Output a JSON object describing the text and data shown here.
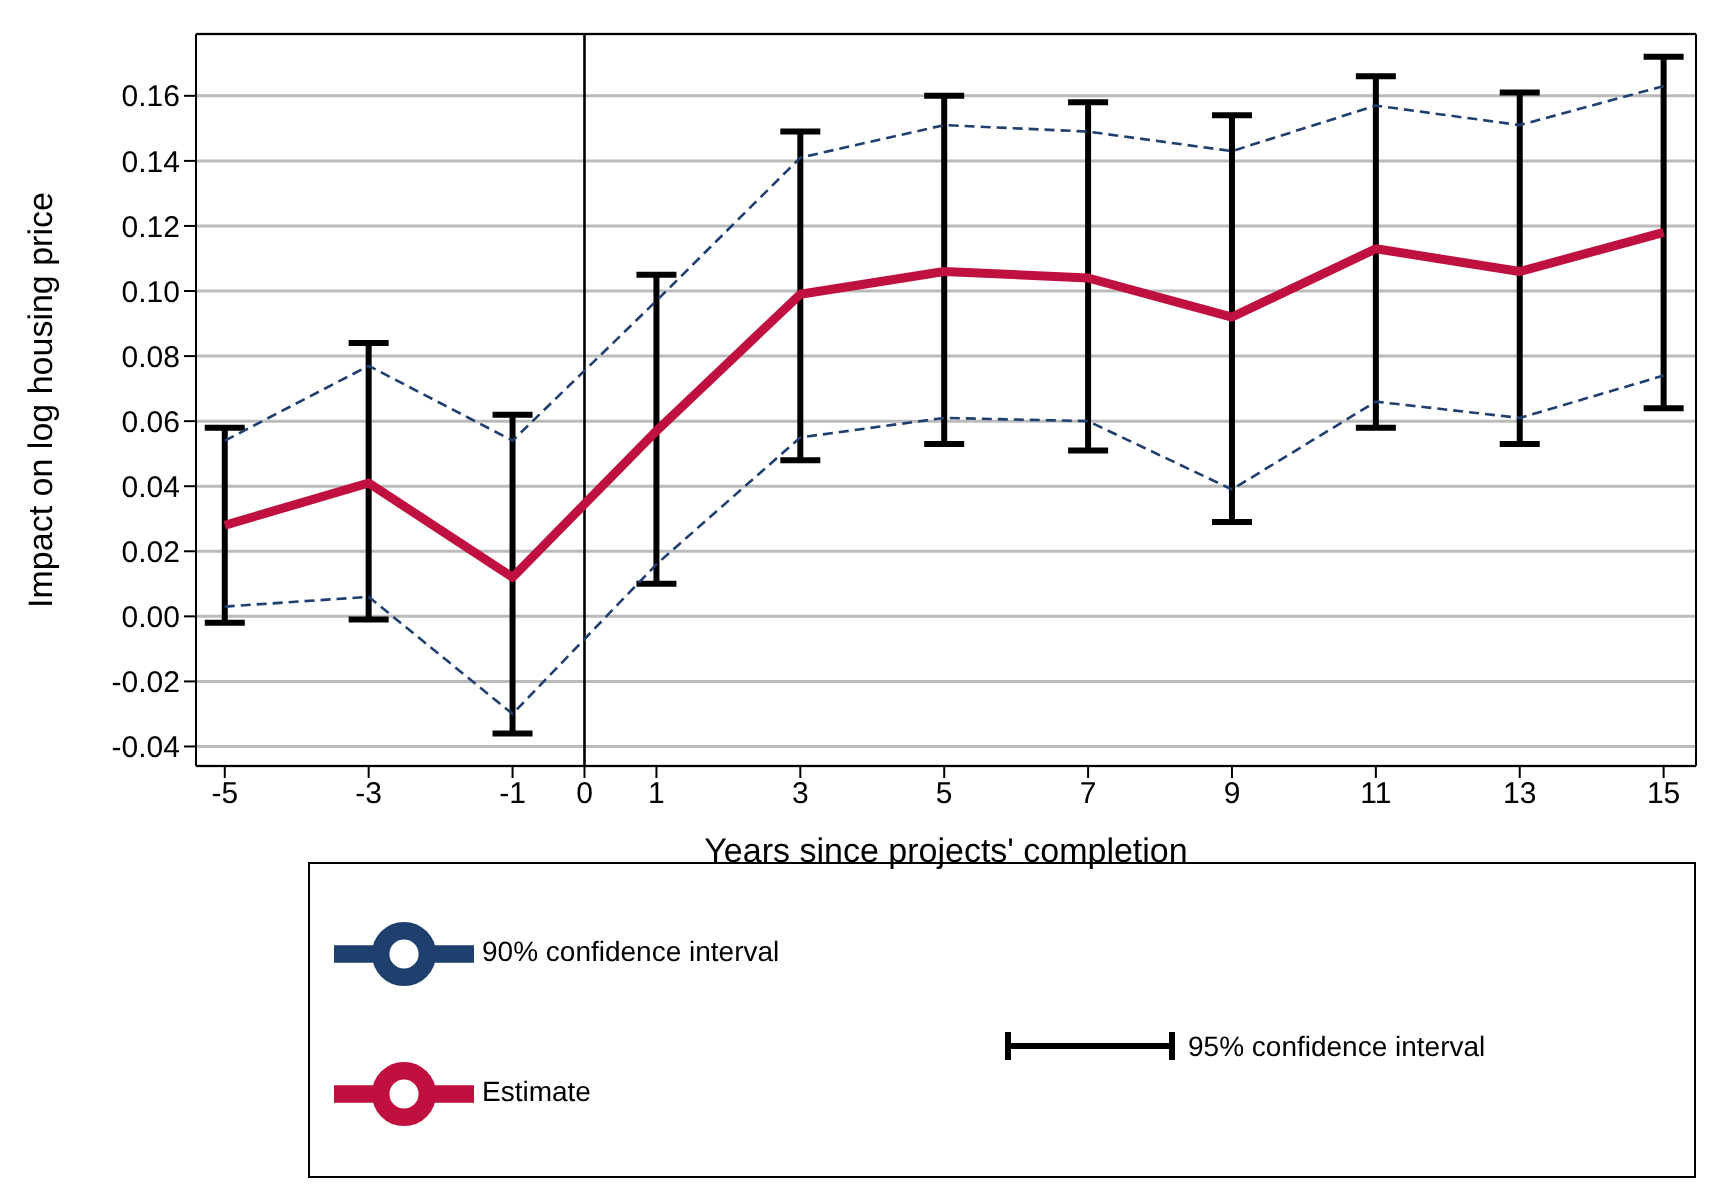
{
  "chart_data": {
    "type": "line",
    "xlabel": "Years since projects' completion",
    "ylabel": "Impact on log housing price",
    "x": [
      -5,
      -3,
      -1,
      1,
      3,
      5,
      7,
      9,
      11,
      13,
      15
    ],
    "xlim": [
      -5.4,
      15.45
    ],
    "xticks": [
      -5,
      -3,
      -1,
      0,
      1,
      3,
      5,
      7,
      9,
      11,
      13,
      15
    ],
    "ylim": [
      -0.046,
      0.179
    ],
    "yticks": [
      {
        "value": -0.04,
        "label": "-0.04"
      },
      {
        "value": -0.02,
        "label": "-0.02"
      },
      {
        "value": 0,
        "label": "0.00"
      },
      {
        "value": 0.02,
        "label": "0.02"
      },
      {
        "value": 0.04,
        "label": "0.04"
      },
      {
        "value": 0.06,
        "label": "0.06"
      },
      {
        "value": 0.08,
        "label": "0.08"
      },
      {
        "value": 0.1,
        "label": "0.10"
      },
      {
        "value": 0.12,
        "label": "0.12"
      },
      {
        "value": 0.14,
        "label": "0.14"
      },
      {
        "value": 0.16,
        "label": "0.16"
      }
    ],
    "series": [
      {
        "name": "Estimate",
        "color": "#c0103f",
        "line_style": "solid",
        "values": [
          0.028,
          0.041,
          0.012,
          0.057,
          0.099,
          0.106,
          0.104,
          0.092,
          0.113,
          0.106,
          0.118
        ],
        "errors": [
          [
            -0.002,
            0.058
          ],
          [
            -0.001,
            0.084
          ],
          [
            -0.036,
            0.062
          ],
          [
            0.01,
            0.105
          ],
          [
            0.048,
            0.149
          ],
          [
            0.053,
            0.16
          ],
          [
            0.051,
            0.158
          ],
          [
            0.029,
            0.154
          ],
          [
            0.058,
            0.166
          ],
          [
            0.053,
            0.161
          ],
          [
            0.064,
            0.172
          ]
        ]
      },
      {
        "name": "90% confidence interval",
        "color": "#1f3f6f",
        "line_style": "dashed",
        "values": [
          0.054,
          0.077,
          0.054,
          0.097,
          0.141,
          0.151,
          0.149,
          0.143,
          0.157,
          0.151,
          0.163
        ]
      },
      {
        "color": "#1f3f6f",
        "line_style": "dashed",
        "values": [
          0.003,
          0.006,
          -0.03,
          0.016,
          0.055,
          0.061,
          0.06,
          0.039,
          0.066,
          0.061,
          0.074
        ]
      }
    ],
    "ref_lines": [
      {
        "axis": "x",
        "value": 0,
        "color": "#000000"
      }
    ],
    "annotations": [
      "95% confidence interval"
    ],
    "grid": "y",
    "legend": "bottom",
    "marker": "none"
  }
}
